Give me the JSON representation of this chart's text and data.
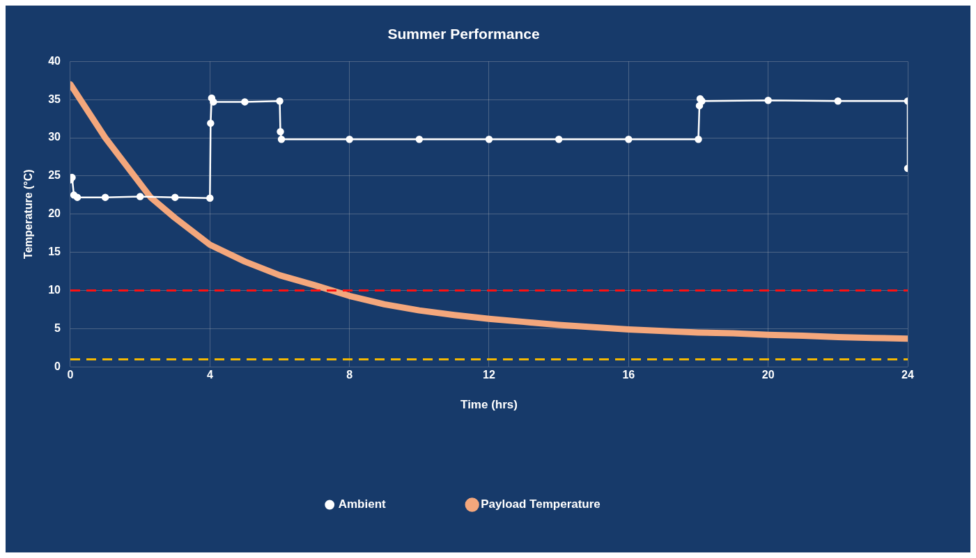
{
  "chart_data": {
    "type": "line",
    "title": "Summer Performance",
    "xlabel": "Time (hrs)",
    "ylabel": "Temperature (°C)",
    "xlim": [
      0,
      24
    ],
    "xticks": [
      0,
      4,
      8,
      12,
      16,
      20,
      24
    ],
    "ylim": [
      0,
      40
    ],
    "yticks": [
      0,
      5,
      10,
      15,
      20,
      25,
      30,
      35,
      40
    ],
    "grid": true,
    "legend": "bottom",
    "series": [
      {
        "name": "Ambient",
        "color": "#ffffff",
        "marker": "circle",
        "x": [
          0,
          0.05,
          0.1,
          0.2,
          1,
          2,
          3,
          4,
          4.02,
          4.05,
          4.1,
          5,
          6,
          6.02,
          6.05,
          8,
          10,
          12,
          14,
          16,
          18,
          18.03,
          18.05,
          18.1,
          20,
          22,
          24,
          24
        ],
        "values": [
          24.5,
          24.8,
          22.5,
          22.2,
          22.2,
          22.3,
          22.2,
          22.1,
          31.9,
          35.2,
          34.7,
          34.7,
          34.8,
          30.8,
          29.8,
          29.8,
          29.8,
          29.8,
          29.8,
          29.8,
          29.8,
          34.2,
          35.1,
          34.8,
          34.9,
          34.8,
          34.8,
          26
        ]
      },
      {
        "name": "Payload Temperature",
        "color": "#f4a77c",
        "marker": "none",
        "x": [
          0,
          1,
          2,
          2.3,
          3,
          4,
          5,
          6,
          7,
          8,
          9,
          10,
          11,
          12,
          13,
          14,
          15,
          16,
          17,
          18,
          19,
          20,
          21,
          22,
          23,
          24
        ],
        "values": [
          37,
          30,
          24,
          22.2,
          19.5,
          16,
          13.8,
          12,
          10.7,
          9.3,
          8.2,
          7.4,
          6.8,
          6.3,
          5.9,
          5.5,
          5.2,
          4.9,
          4.7,
          4.5,
          4.4,
          4.2,
          4.1,
          3.9,
          3.8,
          3.7
        ]
      }
    ],
    "ref_lines": [
      {
        "axis": "y",
        "value": 10,
        "color": "#ff1010",
        "line_style": "dashed"
      },
      {
        "axis": "y",
        "value": 1,
        "color": "#f5b800",
        "line_style": "dashed"
      }
    ]
  }
}
